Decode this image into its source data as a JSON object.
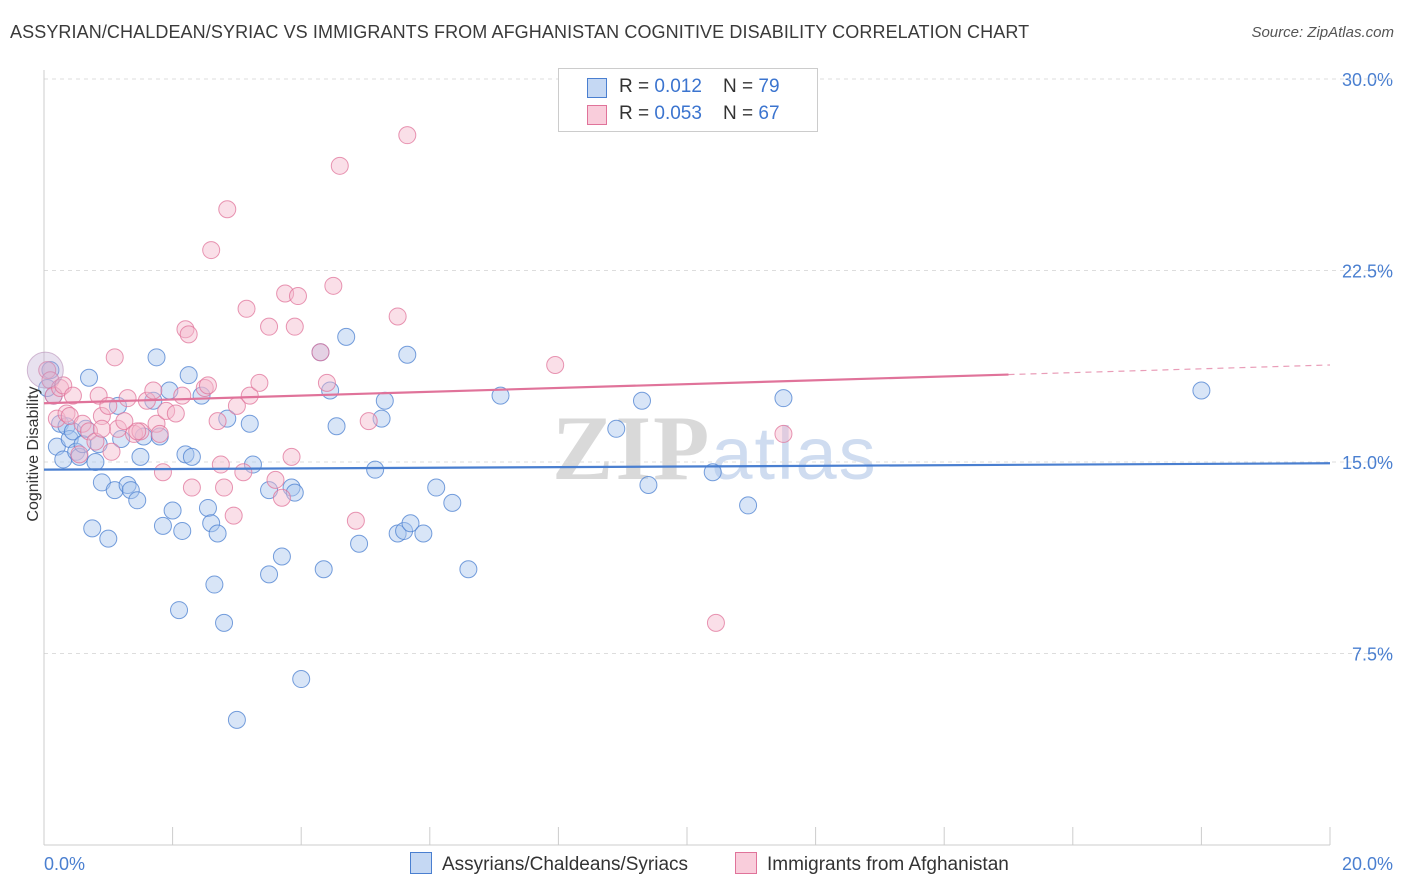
{
  "title": "ASSYRIAN/CHALDEAN/SYRIAC VS IMMIGRANTS FROM AFGHANISTAN COGNITIVE DISABILITY CORRELATION CHART",
  "source": "Source: ZipAtlas.com",
  "watermark": {
    "zip": "ZIP",
    "atlas": "atlas"
  },
  "colors": {
    "blue": "#4a7fd0",
    "pink": "#e0739a",
    "blue_fill": "#a9c6ee",
    "pink_fill": "#f5b8cc"
  },
  "legend": {
    "rows": [
      {
        "r_label": "R = ",
        "r_value": "0.012",
        "n_label": "N = ",
        "n_value": "79"
      },
      {
        "r_label": "R = ",
        "r_value": "0.053",
        "n_label": "N = ",
        "n_value": "67"
      }
    ]
  },
  "bottom_legend": [
    "Assyrians/Chaldeans/Syriacs",
    "Immigrants from Afghanistan"
  ],
  "chart_data": {
    "type": "scatter",
    "title": "ASSYRIAN/CHALDEAN/SYRIAC VS IMMIGRANTS FROM AFGHANISTAN COGNITIVE DISABILITY CORRELATION CHART",
    "xlabel": "",
    "ylabel": "Cognitive Disability",
    "xlim": [
      0,
      20
    ],
    "ylim": [
      0,
      31
    ],
    "x_tick_labels": [
      "0.0%",
      "20.0%"
    ],
    "y_ticks": [
      7.5,
      15.0,
      22.5,
      30.0
    ],
    "y_tick_labels": [
      "7.5%",
      "15.0%",
      "22.5%",
      "30.0%"
    ],
    "series": [
      {
        "name": "Assyrians/Chaldeans/Syriacs",
        "color": "#4a7fd0",
        "R": 0.012,
        "N": 79,
        "trend": {
          "x": [
            0,
            20
          ],
          "y": [
            14.7,
            14.95
          ],
          "dashed_from": null
        },
        "points": [
          [
            0.1,
            18.6
          ],
          [
            0.15,
            17.6
          ],
          [
            0.2,
            15.6
          ],
          [
            0.25,
            16.5
          ],
          [
            0.3,
            15.1
          ],
          [
            0.35,
            16.4
          ],
          [
            0.4,
            15.9
          ],
          [
            0.45,
            16.2
          ],
          [
            0.5,
            15.4
          ],
          [
            0.55,
            15.2
          ],
          [
            0.6,
            15.7
          ],
          [
            0.65,
            16.3
          ],
          [
            0.7,
            18.3
          ],
          [
            0.75,
            12.4
          ],
          [
            0.8,
            15.0
          ],
          [
            0.85,
            15.7
          ],
          [
            0.9,
            14.2
          ],
          [
            1.0,
            12.0
          ],
          [
            1.1,
            13.9
          ],
          [
            1.15,
            17.2
          ],
          [
            1.2,
            15.9
          ],
          [
            1.3,
            14.1
          ],
          [
            1.35,
            13.9
          ],
          [
            1.45,
            13.5
          ],
          [
            1.5,
            15.2
          ],
          [
            1.55,
            16.0
          ],
          [
            1.7,
            17.4
          ],
          [
            1.75,
            19.1
          ],
          [
            1.8,
            16.0
          ],
          [
            1.85,
            12.5
          ],
          [
            1.95,
            17.8
          ],
          [
            2.0,
            13.1
          ],
          [
            2.1,
            9.2
          ],
          [
            2.15,
            12.3
          ],
          [
            2.2,
            15.3
          ],
          [
            2.25,
            18.4
          ],
          [
            2.3,
            15.2
          ],
          [
            2.45,
            17.6
          ],
          [
            2.55,
            13.2
          ],
          [
            2.6,
            12.6
          ],
          [
            2.65,
            10.2
          ],
          [
            2.7,
            12.2
          ],
          [
            2.8,
            8.7
          ],
          [
            2.85,
            16.7
          ],
          [
            3.0,
            4.9
          ],
          [
            3.2,
            16.5
          ],
          [
            3.25,
            14.9
          ],
          [
            3.5,
            13.9
          ],
          [
            3.5,
            10.6
          ],
          [
            3.7,
            11.3
          ],
          [
            3.85,
            14.0
          ],
          [
            3.9,
            13.8
          ],
          [
            4.0,
            6.5
          ],
          [
            4.3,
            19.3
          ],
          [
            4.35,
            10.8
          ],
          [
            4.45,
            17.8
          ],
          [
            4.55,
            16.4
          ],
          [
            4.7,
            19.9
          ],
          [
            4.9,
            11.8
          ],
          [
            5.15,
            14.7
          ],
          [
            5.25,
            16.7
          ],
          [
            5.3,
            17.4
          ],
          [
            5.5,
            12.2
          ],
          [
            5.6,
            12.3
          ],
          [
            5.65,
            19.2
          ],
          [
            5.7,
            12.6
          ],
          [
            5.9,
            12.2
          ],
          [
            6.1,
            14.0
          ],
          [
            6.35,
            13.4
          ],
          [
            6.6,
            10.8
          ],
          [
            7.1,
            17.6
          ],
          [
            8.9,
            16.3
          ],
          [
            9.3,
            17.4
          ],
          [
            9.4,
            14.1
          ],
          [
            10.4,
            14.6
          ],
          [
            10.95,
            13.3
          ],
          [
            11.5,
            17.5
          ],
          [
            18.0,
            17.8
          ],
          [
            0.05,
            17.9
          ]
        ]
      },
      {
        "name": "Immigrants from Afghanistan",
        "color": "#e0739a",
        "R": 0.053,
        "N": 67,
        "trend": {
          "x": [
            0,
            20
          ],
          "y": [
            17.3,
            18.8
          ],
          "dashed_from": 15.0
        },
        "points": [
          [
            0.05,
            18.6
          ],
          [
            0.1,
            18.2
          ],
          [
            0.15,
            17.6
          ],
          [
            0.2,
            16.7
          ],
          [
            0.25,
            17.9
          ],
          [
            0.3,
            18.0
          ],
          [
            0.35,
            16.9
          ],
          [
            0.4,
            16.8
          ],
          [
            0.45,
            17.6
          ],
          [
            0.55,
            15.3
          ],
          [
            0.6,
            16.5
          ],
          [
            0.7,
            16.2
          ],
          [
            0.8,
            15.8
          ],
          [
            0.85,
            17.6
          ],
          [
            0.9,
            16.8
          ],
          [
            1.0,
            17.2
          ],
          [
            1.05,
            15.4
          ],
          [
            1.1,
            19.1
          ],
          [
            1.15,
            16.3
          ],
          [
            1.25,
            16.6
          ],
          [
            1.3,
            17.5
          ],
          [
            1.4,
            16.1
          ],
          [
            1.5,
            16.2
          ],
          [
            1.6,
            17.4
          ],
          [
            1.7,
            17.8
          ],
          [
            1.75,
            16.5
          ],
          [
            1.8,
            16.1
          ],
          [
            1.85,
            14.6
          ],
          [
            1.9,
            17.0
          ],
          [
            2.05,
            16.9
          ],
          [
            2.15,
            17.6
          ],
          [
            2.2,
            20.2
          ],
          [
            2.25,
            20.0
          ],
          [
            2.3,
            14.0
          ],
          [
            2.5,
            17.9
          ],
          [
            2.55,
            18.0
          ],
          [
            2.6,
            23.3
          ],
          [
            2.7,
            16.6
          ],
          [
            2.75,
            14.9
          ],
          [
            2.8,
            14.0
          ],
          [
            2.85,
            24.9
          ],
          [
            2.95,
            12.9
          ],
          [
            3.0,
            17.2
          ],
          [
            3.1,
            14.6
          ],
          [
            3.15,
            21.0
          ],
          [
            3.2,
            17.6
          ],
          [
            3.35,
            18.1
          ],
          [
            3.5,
            20.3
          ],
          [
            3.6,
            14.3
          ],
          [
            3.7,
            13.6
          ],
          [
            3.75,
            21.6
          ],
          [
            3.85,
            15.2
          ],
          [
            3.9,
            20.3
          ],
          [
            3.95,
            21.5
          ],
          [
            4.3,
            19.3
          ],
          [
            4.4,
            18.1
          ],
          [
            4.5,
            21.9
          ],
          [
            4.6,
            26.6
          ],
          [
            4.85,
            12.7
          ],
          [
            5.05,
            16.6
          ],
          [
            5.5,
            20.7
          ],
          [
            5.65,
            27.8
          ],
          [
            7.95,
            18.8
          ],
          [
            10.45,
            8.7
          ],
          [
            11.5,
            16.1
          ],
          [
            0.9,
            16.3
          ],
          [
            1.45,
            16.2
          ]
        ]
      }
    ]
  }
}
